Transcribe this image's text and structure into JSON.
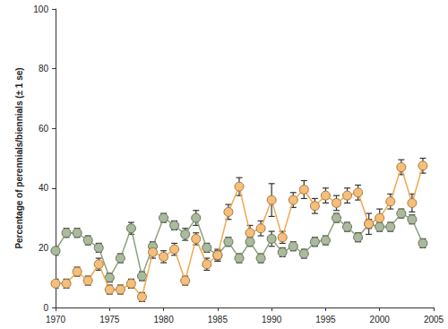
{
  "chart_data": {
    "type": "line",
    "y_label": "Percentage of perennials/biennials (± 1 se)",
    "x": [
      1970,
      1971,
      1972,
      1973,
      1974,
      1975,
      1976,
      1977,
      1978,
      1979,
      1980,
      1981,
      1982,
      1983,
      1984,
      1985,
      1986,
      1987,
      1988,
      1989,
      1990,
      1991,
      1992,
      1993,
      1994,
      1995,
      1996,
      1997,
      1998,
      1999,
      2000,
      2001,
      2002,
      2003,
      2004
    ],
    "series": [
      {
        "color": "#8fa27c",
        "marker": "circle",
        "line_style": "solid",
        "values": [
          19,
          25,
          25,
          22.5,
          20,
          10,
          16.5,
          26.5,
          10.5,
          20.5,
          30,
          27.5,
          24.5,
          30,
          20,
          17.5,
          22,
          16.5,
          22,
          16.5,
          23,
          18.5,
          20.5,
          18,
          22,
          22.5,
          30,
          27,
          23.5,
          28,
          27,
          27,
          31.5,
          29.5,
          21.5
        ],
        "errors": [
          1.5,
          1.5,
          1.5,
          1.5,
          1.5,
          1.5,
          1.5,
          2,
          1.5,
          1.5,
          1.5,
          1.5,
          2,
          2.5,
          1.5,
          1.5,
          1.5,
          1.5,
          1.5,
          1.5,
          2.5,
          1.5,
          1.5,
          1.5,
          1.5,
          1.5,
          1.5,
          1.5,
          1.5,
          1.5,
          1.5,
          1.5,
          1.5,
          1.5,
          1.5
        ]
      },
      {
        "color": "#f0a850",
        "marker": "circle",
        "line_style": "solid",
        "values": [
          8,
          8,
          12,
          9,
          14.5,
          6,
          6,
          8,
          3.5,
          18.5,
          17,
          19.5,
          9,
          23,
          14.5,
          17.5,
          32,
          40.5,
          25,
          26.5,
          36,
          23.5,
          36,
          39.5,
          34,
          37.5,
          35,
          37.5,
          38.5,
          28,
          30,
          35.5,
          47,
          35,
          47.5
        ],
        "errors": [
          1.5,
          1.5,
          1.5,
          1.5,
          2,
          1.5,
          1.5,
          1.5,
          1.5,
          2,
          2,
          2,
          1.5,
          2,
          2,
          2,
          2.5,
          3,
          2.5,
          2.5,
          5.5,
          2,
          2.5,
          3,
          2.5,
          2.5,
          2.5,
          2.5,
          2.5,
          3.5,
          3,
          2.5,
          2.5,
          3,
          2.5
        ]
      }
    ],
    "xlim": [
      1970,
      2005
    ],
    "xticks": [
      1970,
      1975,
      1980,
      1985,
      1990,
      1995,
      2000,
      2005
    ],
    "ylim": [
      0,
      100
    ],
    "yticks": [
      0,
      20,
      40,
      60,
      80,
      100
    ],
    "grid": false
  }
}
